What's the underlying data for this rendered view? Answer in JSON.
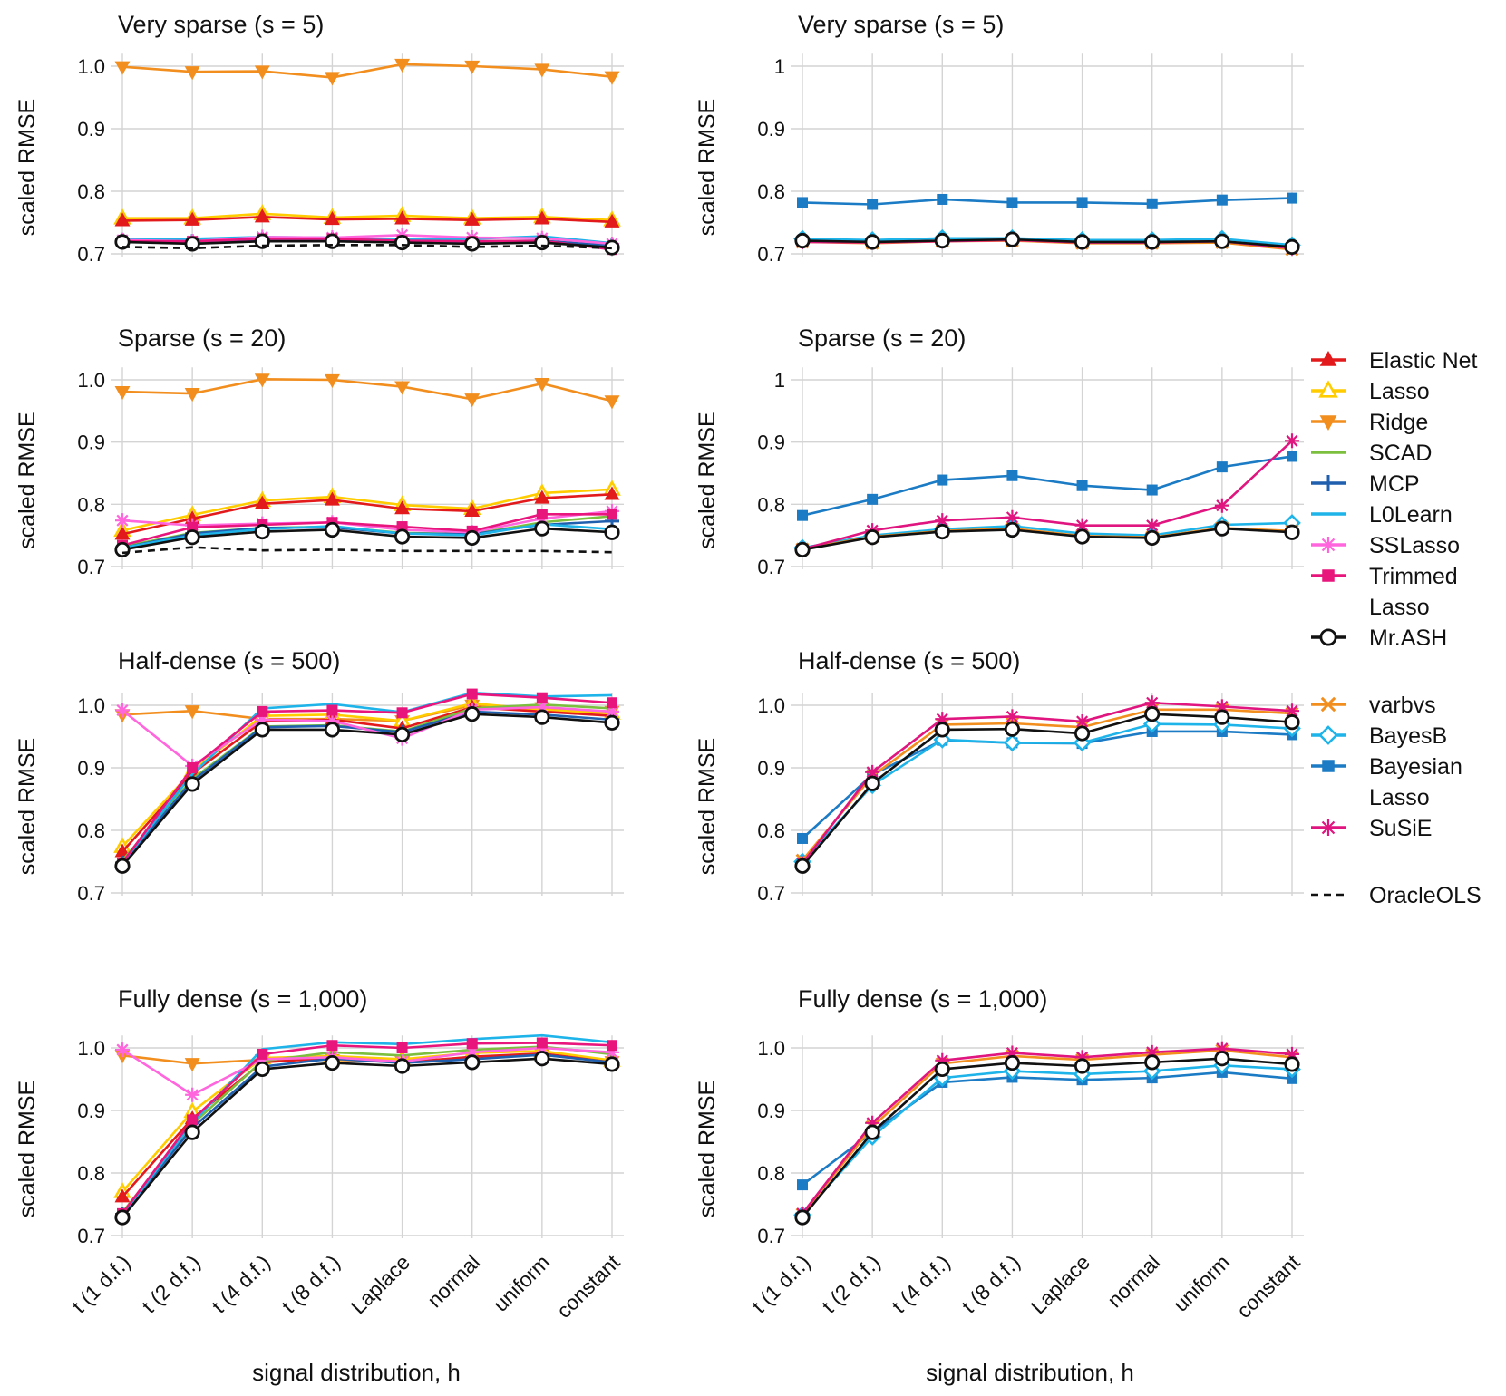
{
  "figure": {
    "xlabel": "signal distribution, h",
    "ylabel": "scaled RMSE"
  },
  "legend": {
    "groups": [
      [
        {
          "name": "Elastic Net",
          "color": "#e31a1c",
          "marker": "triangle-up-filled"
        },
        {
          "name": "Lasso",
          "color": "#ffcc00",
          "marker": "triangle-up-open"
        },
        {
          "name": "Ridge",
          "color": "#f28e1e",
          "marker": "triangle-down-filled"
        },
        {
          "name": "SCAD",
          "color": "#7cbf3f",
          "marker": "line"
        },
        {
          "name": "MCP",
          "color": "#1f5fae",
          "marker": "plus"
        },
        {
          "name": "L0Learn",
          "color": "#1eb4ea",
          "marker": "line"
        },
        {
          "name": "SSLasso",
          "color": "#ff66dd",
          "marker": "asterisk"
        },
        {
          "name": "Trimmed Lasso",
          "lines": [
            "Trimmed",
            "Lasso"
          ],
          "color": "#e8157d",
          "marker": "square-filled"
        },
        {
          "name": "Mr.ASH",
          "color": "#111111",
          "marker": "circle-open"
        }
      ],
      [
        {
          "name": "varbvs",
          "color": "#f28e1e",
          "marker": "x"
        },
        {
          "name": "BayesB",
          "color": "#1eb4ea",
          "marker": "diamond-open"
        },
        {
          "name": "Bayesian Lasso",
          "lines": [
            "Bayesian",
            "Lasso"
          ],
          "color": "#1b7bc4",
          "marker": "square-filled"
        },
        {
          "name": "SuSiE",
          "color": "#e0157f",
          "marker": "asterisk"
        }
      ],
      [
        {
          "name": "OracleOLS",
          "color": "#111111",
          "marker": "dashed"
        }
      ]
    ]
  },
  "chart_data": [
    {
      "type": "line",
      "title": "Very sparse (s = 5)",
      "categories": [
        "t (1 d.f.)",
        "t (2 d.f.)",
        "t (4 d.f.)",
        "t (8 d.f.)",
        "Laplace",
        "normal",
        "uniform",
        "constant"
      ],
      "y_ticks": [
        "0.7",
        "0.8",
        "0.9",
        "1.0"
      ],
      "ylim": [
        0.7,
        1.02
      ],
      "series": [
        {
          "name": "Ridge",
          "values": [
            0.999,
            0.991,
            0.992,
            0.982,
            1.003,
            1.0,
            0.995,
            0.983
          ]
        },
        {
          "name": "Lasso",
          "values": [
            0.757,
            0.757,
            0.764,
            0.758,
            0.761,
            0.757,
            0.759,
            0.754
          ]
        },
        {
          "name": "Elastic Net",
          "values": [
            0.753,
            0.754,
            0.759,
            0.755,
            0.756,
            0.754,
            0.756,
            0.751
          ]
        },
        {
          "name": "SCAD",
          "values": [
            0.721,
            0.719,
            0.722,
            0.722,
            0.718,
            0.719,
            0.72,
            0.712
          ]
        },
        {
          "name": "MCP",
          "values": [
            0.722,
            0.72,
            0.723,
            0.723,
            0.719,
            0.72,
            0.721,
            0.713
          ]
        },
        {
          "name": "L0Learn",
          "values": [
            0.724,
            0.724,
            0.727,
            0.726,
            0.723,
            0.724,
            0.728,
            0.717
          ]
        },
        {
          "name": "SSLasso",
          "values": [
            0.722,
            0.72,
            0.727,
            0.726,
            0.73,
            0.726,
            0.725,
            0.716
          ]
        },
        {
          "name": "Trimmed Lasso",
          "values": [
            0.72,
            0.72,
            0.724,
            0.724,
            0.721,
            0.72,
            0.721,
            0.707
          ]
        },
        {
          "name": "Mr.ASH",
          "values": [
            0.719,
            0.716,
            0.72,
            0.72,
            0.718,
            0.716,
            0.718,
            0.71
          ]
        },
        {
          "name": "OracleOLS",
          "values": [
            0.711,
            0.709,
            0.713,
            0.714,
            0.714,
            0.711,
            0.713,
            0.709
          ]
        }
      ]
    },
    {
      "type": "line",
      "title": "Very sparse (s = 5)",
      "categories": [
        "t (1 d.f.)",
        "t (2 d.f.)",
        "t (4 d.f.)",
        "t (8 d.f.)",
        "Laplace",
        "normal",
        "uniform",
        "constant"
      ],
      "y_ticks": [
        "0.7",
        "0.8",
        "0.9",
        "1"
      ],
      "ylim": [
        0.7,
        1.02
      ],
      "series": [
        {
          "name": "Bayesian Lasso",
          "values": [
            0.782,
            0.779,
            0.787,
            0.782,
            0.782,
            0.78,
            0.786,
            0.789
          ]
        },
        {
          "name": "BayesB",
          "values": [
            0.724,
            0.722,
            0.725,
            0.725,
            0.722,
            0.722,
            0.724,
            0.714
          ]
        },
        {
          "name": "varbvs",
          "values": [
            0.719,
            0.717,
            0.72,
            0.721,
            0.717,
            0.717,
            0.718,
            0.707
          ]
        },
        {
          "name": "SuSiE",
          "values": [
            0.719,
            0.718,
            0.72,
            0.722,
            0.718,
            0.718,
            0.72,
            0.709
          ]
        },
        {
          "name": "Mr.ASH",
          "values": [
            0.721,
            0.719,
            0.721,
            0.723,
            0.719,
            0.719,
            0.72,
            0.711
          ]
        }
      ]
    },
    {
      "type": "line",
      "title": "Sparse (s = 20)",
      "categories": [
        "t (1 d.f.)",
        "t (2 d.f.)",
        "t (4 d.f.)",
        "t (8 d.f.)",
        "Laplace",
        "normal",
        "uniform",
        "constant"
      ],
      "y_ticks": [
        "0.7",
        "0.8",
        "0.9",
        "1.0"
      ],
      "ylim": [
        0.7,
        1.02
      ],
      "series": [
        {
          "name": "Ridge",
          "values": [
            0.981,
            0.978,
            1.001,
            1.0,
            0.989,
            0.969,
            0.994,
            0.966
          ]
        },
        {
          "name": "Lasso",
          "values": [
            0.758,
            0.783,
            0.806,
            0.812,
            0.799,
            0.793,
            0.818,
            0.824
          ]
        },
        {
          "name": "Elastic Net",
          "values": [
            0.752,
            0.777,
            0.801,
            0.807,
            0.793,
            0.789,
            0.81,
            0.816
          ]
        },
        {
          "name": "SCAD",
          "values": [
            0.732,
            0.754,
            0.762,
            0.764,
            0.754,
            0.752,
            0.771,
            0.781
          ]
        },
        {
          "name": "MCP",
          "values": [
            0.73,
            0.753,
            0.762,
            0.763,
            0.753,
            0.752,
            0.767,
            0.773
          ]
        },
        {
          "name": "L0Learn",
          "values": [
            0.73,
            0.75,
            0.76,
            0.765,
            0.753,
            0.75,
            0.768,
            0.76
          ]
        },
        {
          "name": "SSLasso",
          "values": [
            0.774,
            0.766,
            0.769,
            0.771,
            0.759,
            0.755,
            0.777,
            0.789
          ]
        },
        {
          "name": "Trimmed Lasso",
          "values": [
            0.734,
            0.763,
            0.767,
            0.771,
            0.764,
            0.757,
            0.784,
            0.784
          ]
        },
        {
          "name": "Mr.ASH",
          "values": [
            0.727,
            0.747,
            0.756,
            0.759,
            0.748,
            0.746,
            0.761,
            0.755
          ]
        },
        {
          "name": "OracleOLS",
          "values": [
            0.722,
            0.731,
            0.726,
            0.727,
            0.725,
            0.725,
            0.725,
            0.723
          ]
        }
      ]
    },
    {
      "type": "line",
      "title": "Sparse (s = 20)",
      "categories": [
        "t (1 d.f.)",
        "t (2 d.f.)",
        "t (4 d.f.)",
        "t (8 d.f.)",
        "Laplace",
        "normal",
        "uniform",
        "constant"
      ],
      "y_ticks": [
        "0.7",
        "0.8",
        "0.9",
        "1"
      ],
      "ylim": [
        0.7,
        1.02
      ],
      "series": [
        {
          "name": "Bayesian Lasso",
          "values": [
            0.782,
            0.808,
            0.839,
            0.846,
            0.83,
            0.823,
            0.86,
            0.877
          ]
        },
        {
          "name": "BayesB",
          "values": [
            0.73,
            0.75,
            0.76,
            0.765,
            0.753,
            0.75,
            0.767,
            0.77
          ]
        },
        {
          "name": "varbvs",
          "values": [
            0.728,
            0.748,
            0.757,
            0.761,
            0.749,
            0.747,
            0.762,
            0.757
          ]
        },
        {
          "name": "SuSiE",
          "values": [
            0.728,
            0.758,
            0.774,
            0.779,
            0.766,
            0.766,
            0.798,
            0.902
          ]
        },
        {
          "name": "Mr.ASH",
          "values": [
            0.727,
            0.747,
            0.756,
            0.759,
            0.748,
            0.746,
            0.761,
            0.755
          ]
        }
      ]
    },
    {
      "type": "line",
      "title": "Half-dense (s = 500)",
      "categories": [
        "t (1 d.f.)",
        "t (2 d.f.)",
        "t (4 d.f.)",
        "t (8 d.f.)",
        "Laplace",
        "normal",
        "uniform",
        "constant"
      ],
      "y_ticks": [
        "0.7",
        "0.8",
        "0.9",
        "1.0"
      ],
      "ylim": [
        0.7,
        1.02
      ],
      "series": [
        {
          "name": "Ridge",
          "values": [
            0.985,
            0.991,
            0.978,
            0.978,
            0.975,
            1.0,
            0.996,
            0.99
          ]
        },
        {
          "name": "Lasso",
          "values": [
            0.774,
            0.895,
            0.983,
            0.985,
            0.975,
            1.003,
            0.993,
            0.987
          ]
        },
        {
          "name": "Elastic Net",
          "values": [
            0.766,
            0.891,
            0.974,
            0.977,
            0.963,
            0.997,
            0.99,
            0.983
          ]
        },
        {
          "name": "SCAD",
          "values": [
            0.752,
            0.882,
            0.966,
            0.968,
            0.958,
            0.995,
            1.001,
            0.995
          ]
        },
        {
          "name": "MCP",
          "values": [
            0.748,
            0.879,
            0.965,
            0.967,
            0.957,
            0.99,
            0.985,
            0.977
          ]
        },
        {
          "name": "L0Learn",
          "values": [
            0.748,
            0.89,
            0.995,
            1.002,
            0.989,
            1.02,
            1.014,
            1.016
          ]
        },
        {
          "name": "SSLasso",
          "values": [
            0.992,
            0.903,
            0.977,
            0.975,
            0.947,
            0.993,
            0.997,
            0.99
          ]
        },
        {
          "name": "Trimmed Lasso",
          "values": [
            0.748,
            0.9,
            0.99,
            0.992,
            0.988,
            1.018,
            1.012,
            1.004
          ]
        },
        {
          "name": "Mr.ASH",
          "values": [
            0.743,
            0.874,
            0.961,
            0.961,
            0.953,
            0.986,
            0.981,
            0.972
          ]
        }
      ]
    },
    {
      "type": "line",
      "title": "Half-dense (s = 500)",
      "categories": [
        "t (1 d.f.)",
        "t (2 d.f.)",
        "t (4 d.f.)",
        "t (8 d.f.)",
        "Laplace",
        "normal",
        "uniform",
        "constant"
      ],
      "y_ticks": [
        "0.7",
        "0.8",
        "0.9",
        "1.0"
      ],
      "ylim": [
        0.7,
        1.02
      ],
      "series": [
        {
          "name": "Bayesian Lasso",
          "values": [
            0.787,
            0.889,
            0.944,
            0.94,
            0.939,
            0.958,
            0.958,
            0.953
          ]
        },
        {
          "name": "BayesB",
          "values": [
            0.75,
            0.872,
            0.945,
            0.94,
            0.94,
            0.97,
            0.969,
            0.963
          ]
        },
        {
          "name": "varbvs",
          "values": [
            0.752,
            0.887,
            0.969,
            0.971,
            0.965,
            0.993,
            0.993,
            0.987
          ]
        },
        {
          "name": "SuSiE",
          "values": [
            0.747,
            0.893,
            0.978,
            0.982,
            0.974,
            1.004,
            0.998,
            0.991
          ]
        },
        {
          "name": "Mr.ASH",
          "values": [
            0.743,
            0.875,
            0.961,
            0.962,
            0.955,
            0.986,
            0.981,
            0.973
          ]
        }
      ]
    },
    {
      "type": "line",
      "title": "Fully dense (s = 1,000)",
      "categories": [
        "t (1 d.f.)",
        "t (2 d.f.)",
        "t (4 d.f.)",
        "t (8 d.f.)",
        "Laplace",
        "normal",
        "uniform",
        "constant"
      ],
      "y_ticks": [
        "0.7",
        "0.8",
        "0.9",
        "1.0"
      ],
      "ylim": [
        0.7,
        1.02
      ],
      "series": [
        {
          "name": "Ridge",
          "values": [
            0.988,
            0.975,
            0.981,
            0.981,
            0.978,
            0.985,
            0.989,
            0.978
          ]
        },
        {
          "name": "Lasso",
          "values": [
            0.77,
            0.898,
            0.984,
            0.987,
            0.982,
            0.992,
            0.995,
            0.98
          ]
        },
        {
          "name": "Elastic Net",
          "values": [
            0.762,
            0.887,
            0.977,
            0.984,
            0.976,
            0.986,
            0.991,
            0.977
          ]
        },
        {
          "name": "SCAD",
          "values": [
            0.737,
            0.878,
            0.979,
            0.993,
            0.988,
            0.997,
            1.002,
            0.99
          ]
        },
        {
          "name": "MCP",
          "values": [
            0.734,
            0.872,
            0.97,
            0.983,
            0.976,
            0.982,
            0.989,
            0.977
          ]
        },
        {
          "name": "L0Learn",
          "values": [
            0.733,
            0.88,
            0.998,
            1.009,
            1.006,
            1.014,
            1.02,
            1.009
          ]
        },
        {
          "name": "SSLasso",
          "values": [
            0.997,
            0.925,
            0.982,
            0.985,
            0.978,
            0.993,
            1.0,
            0.993
          ]
        },
        {
          "name": "Trimmed Lasso",
          "values": [
            0.735,
            0.885,
            0.99,
            1.004,
            1.0,
            1.007,
            1.008,
            1.004
          ]
        },
        {
          "name": "Mr.ASH",
          "values": [
            0.729,
            0.865,
            0.966,
            0.976,
            0.971,
            0.977,
            0.983,
            0.974
          ]
        }
      ]
    },
    {
      "type": "line",
      "title": "Fully dense (s = 1,000)",
      "categories": [
        "t (1 d.f.)",
        "t (2 d.f.)",
        "t (4 d.f.)",
        "t (8 d.f.)",
        "Laplace",
        "normal",
        "uniform",
        "constant"
      ],
      "y_ticks": [
        "0.7",
        "0.8",
        "0.9",
        "1.0"
      ],
      "ylim": [
        0.7,
        1.02
      ],
      "series": [
        {
          "name": "Bayesian Lasso",
          "values": [
            0.781,
            0.865,
            0.945,
            0.953,
            0.949,
            0.952,
            0.961,
            0.951
          ]
        },
        {
          "name": "BayesB",
          "values": [
            0.733,
            0.858,
            0.952,
            0.963,
            0.958,
            0.963,
            0.972,
            0.966
          ]
        },
        {
          "name": "varbvs",
          "values": [
            0.734,
            0.874,
            0.975,
            0.987,
            0.981,
            0.989,
            0.996,
            0.985
          ]
        },
        {
          "name": "SuSiE",
          "values": [
            0.735,
            0.88,
            0.98,
            0.992,
            0.985,
            0.993,
            0.999,
            0.99
          ]
        },
        {
          "name": "Mr.ASH",
          "values": [
            0.729,
            0.865,
            0.966,
            0.976,
            0.971,
            0.977,
            0.983,
            0.974
          ]
        }
      ]
    }
  ]
}
